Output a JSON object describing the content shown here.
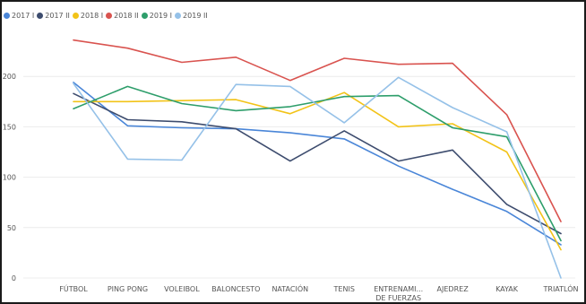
{
  "chart_data": {
    "type": "line",
    "title": "",
    "xlabel": "",
    "ylabel": "",
    "ylim": [
      0,
      250
    ],
    "yticks": [
      0,
      50,
      100,
      150,
      200
    ],
    "grid": true,
    "legend_position": "top-left",
    "categories": [
      [
        "FÚTBOL"
      ],
      [
        "PING PONG"
      ],
      [
        "VOLEIBOL"
      ],
      [
        "BALONCESTO"
      ],
      [
        "NATACIÓN"
      ],
      [
        "TENIS"
      ],
      [
        "ENTRENAMI...",
        "DE FUERZAS"
      ],
      [
        "AJEDREZ"
      ],
      [
        "KAYAK"
      ],
      [
        "TRIATLÓN"
      ]
    ],
    "series": [
      {
        "name": "2017 I",
        "color": "#4a86d8",
        "values": [
          194,
          151,
          149,
          148,
          144,
          138,
          111,
          88,
          66,
          33
        ]
      },
      {
        "name": "2017 II",
        "color": "#3d4c6e",
        "values": [
          183,
          157,
          155,
          148,
          116,
          146,
          116,
          127,
          73,
          44
        ]
      },
      {
        "name": "2018 I",
        "color": "#f2c318",
        "values": [
          175,
          175,
          176,
          177,
          163,
          184,
          150,
          153,
          125,
          28
        ]
      },
      {
        "name": "2018 II",
        "color": "#d9534f",
        "values": [
          236,
          228,
          214,
          219,
          196,
          218,
          212,
          213,
          162,
          56
        ]
      },
      {
        "name": "2019 I",
        "color": "#2e9e6b",
        "values": [
          168,
          190,
          173,
          166,
          170,
          180,
          181,
          149,
          140,
          37
        ]
      },
      {
        "name": "2019 II",
        "color": "#95c1e8",
        "values": [
          193,
          118,
          117,
          192,
          190,
          154,
          199,
          169,
          145,
          0
        ]
      }
    ]
  }
}
